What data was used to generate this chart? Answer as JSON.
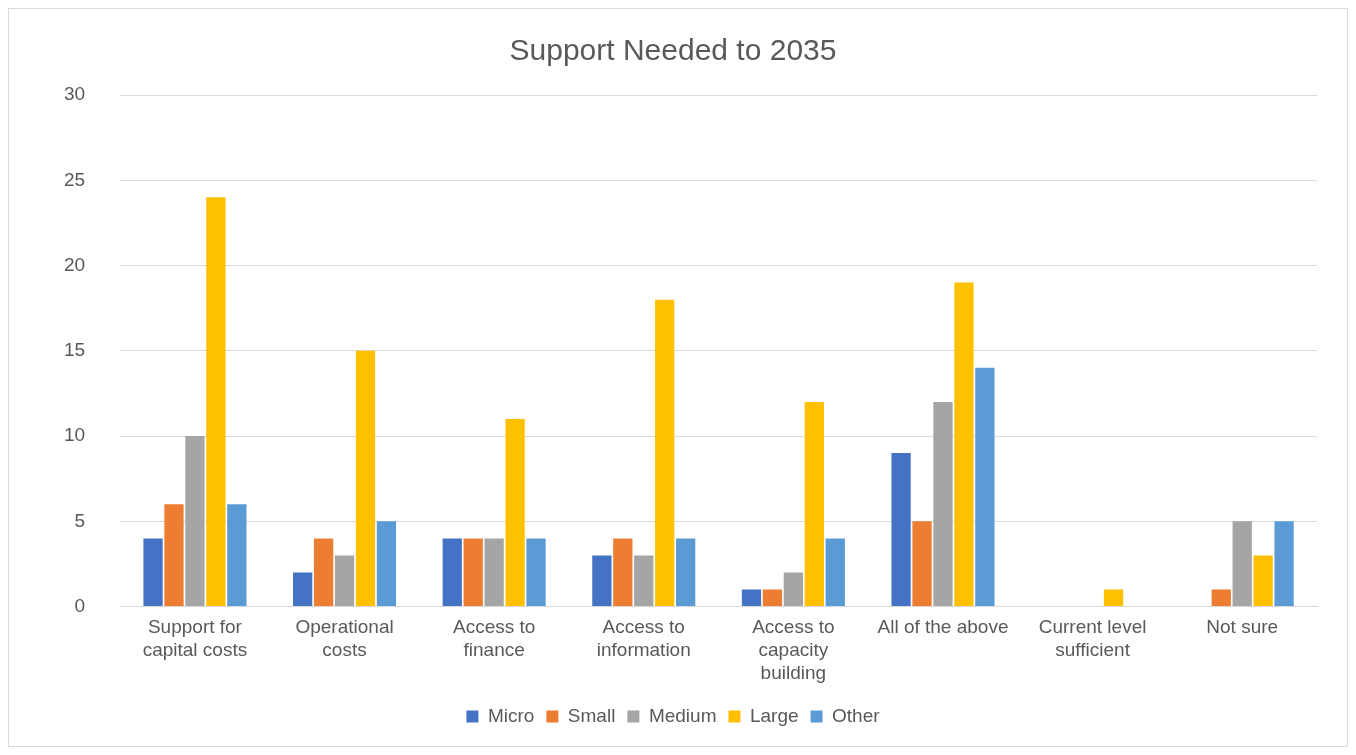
{
  "chart_data": {
    "type": "bar",
    "title": "Support Needed to 2035",
    "categories": [
      "Support for capital costs",
      "Operational costs",
      "Access to finance",
      "Access to information",
      "Access to capacity building",
      "All of the above",
      "Current level sufficient",
      "Not sure"
    ],
    "series": [
      {
        "name": "Micro",
        "color": "#4472c4",
        "values": [
          4,
          2,
          4,
          3,
          1,
          9,
          0,
          0
        ]
      },
      {
        "name": "Small",
        "color": "#ed7d31",
        "values": [
          6,
          4,
          4,
          4,
          1,
          5,
          0,
          1
        ]
      },
      {
        "name": "Medium",
        "color": "#a5a5a5",
        "values": [
          10,
          3,
          4,
          3,
          2,
          12,
          0,
          5
        ]
      },
      {
        "name": "Large",
        "color": "#ffc000",
        "values": [
          24,
          15,
          11,
          18,
          12,
          19,
          1,
          3
        ]
      },
      {
        "name": "Other",
        "color": "#5b9bd5",
        "values": [
          6,
          5,
          4,
          4,
          4,
          14,
          0,
          5
        ]
      }
    ],
    "ylim": [
      0,
      30
    ],
    "yticks": [
      0,
      5,
      10,
      15,
      20,
      25,
      30
    ],
    "grid": "y",
    "legend": "bottom"
  }
}
